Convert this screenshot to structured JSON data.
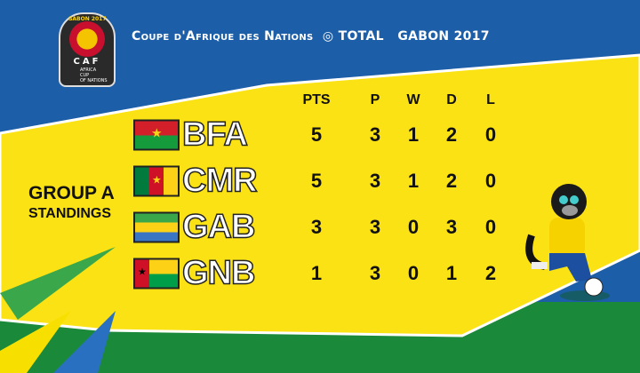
{
  "header": {
    "title_main": "Coupe d'Afrique des Nations",
    "sponsor": "TOTAL",
    "edition": "GABON 2017",
    "logo": {
      "top": "GABON 2017",
      "caf": "CAF",
      "sub": "AFRICA CUP OF NATIONS"
    }
  },
  "group": {
    "name": "GROUP A",
    "subtitle": "STANDINGS"
  },
  "columns": [
    "PTS",
    "P",
    "W",
    "D",
    "L"
  ],
  "rows": [
    {
      "code": "BFA",
      "flag": "burkina-faso-flag",
      "pts": "5",
      "p": "3",
      "w": "1",
      "d": "2",
      "l": "0"
    },
    {
      "code": "CMR",
      "flag": "cameroon-flag",
      "pts": "5",
      "p": "3",
      "w": "1",
      "d": "2",
      "l": "0"
    },
    {
      "code": "GAB",
      "flag": "gabon-flag",
      "pts": "3",
      "p": "3",
      "w": "0",
      "d": "3",
      "l": "0"
    },
    {
      "code": "GNB",
      "flag": "guinea-bissau-flag",
      "pts": "1",
      "p": "3",
      "w": "0",
      "d": "1",
      "l": "2"
    }
  ],
  "colors": {
    "blue": "#1d5ea8",
    "yellow": "#fbe214",
    "green": "#1a8a3a"
  }
}
